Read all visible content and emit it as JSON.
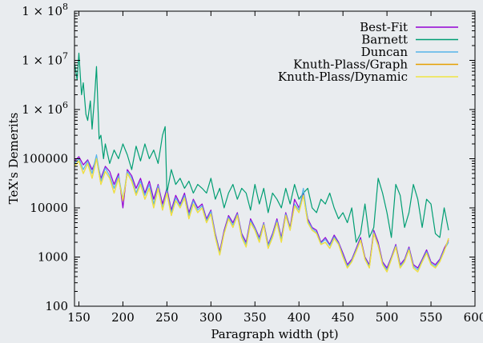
{
  "chart_data": {
    "type": "line",
    "title": "",
    "xlabel": "Paragraph width (pt)",
    "ylabel": "TeX's Demerits",
    "xlim": [
      145,
      600
    ],
    "ylim": [
      100,
      100000000
    ],
    "yscale": "log",
    "grid": false,
    "legend_position": "top-right",
    "x_ticks": [
      150,
      200,
      250,
      300,
      350,
      400,
      450,
      500,
      550,
      600
    ],
    "x_tick_labels": [
      "150",
      "200",
      "250",
      "300",
      "350",
      "400",
      "450",
      "500",
      "550",
      "600"
    ],
    "y_ticks": [
      100,
      1000,
      10000,
      100000,
      1000000,
      10000000,
      100000000
    ],
    "y_tick_labels": [
      "100",
      "1000",
      "10000",
      "100000",
      "1 × 10",
      "1 × 10",
      "1 × 10"
    ],
    "y_tick_exponents": [
      "",
      "",
      "",
      "",
      "6",
      "7",
      "8"
    ],
    "series": [
      {
        "name": "Best-Fit",
        "color": "#9400d3",
        "x": [
          145,
          150,
          155,
          160,
          165,
          170,
          175,
          180,
          185,
          190,
          195,
          200,
          205,
          210,
          215,
          220,
          225,
          230,
          235,
          240,
          245,
          250,
          255,
          260,
          265,
          270,
          275,
          280,
          285,
          290,
          295,
          300,
          305,
          310,
          315,
          320,
          325,
          330,
          335,
          340,
          345,
          350,
          355,
          360,
          365,
          370,
          375,
          380,
          385,
          390,
          395,
          400,
          405,
          410,
          415,
          420,
          425,
          430,
          435,
          440,
          445,
          450,
          455,
          460,
          465,
          470,
          475,
          480,
          485,
          490,
          495,
          500,
          505,
          510,
          515,
          520,
          525,
          530,
          535,
          540,
          545,
          550,
          555,
          560,
          565,
          570
        ],
        "values": [
          90000,
          110000,
          75000,
          95000,
          60000,
          100000,
          40000,
          70000,
          55000,
          30000,
          50000,
          10000,
          60000,
          45000,
          25000,
          40000,
          20000,
          35000,
          15000,
          30000,
          12000,
          25000,
          9000,
          18000,
          12000,
          20000,
          8000,
          15000,
          10000,
          12000,
          6000,
          9000,
          3000,
          1300,
          3500,
          7000,
          5000,
          8000,
          3000,
          2000,
          6000,
          4000,
          2500,
          5000,
          1800,
          3000,
          6000,
          2500,
          8000,
          4000,
          15000,
          10000,
          20000,
          6000,
          4000,
          3500,
          2000,
          2500,
          1800,
          2800,
          2000,
          1200,
          700,
          900,
          1500,
          2500,
          1000,
          700,
          3500,
          2000,
          800,
          600,
          1000,
          1800,
          700,
          900,
          1600,
          700,
          600,
          900,
          1400,
          800,
          700,
          900,
          1500,
          2200
        ]
      },
      {
        "name": "Barnett",
        "color": "#009e73",
        "x": [
          145,
          148,
          150,
          153,
          155,
          158,
          160,
          163,
          165,
          168,
          170,
          173,
          175,
          178,
          180,
          185,
          190,
          195,
          200,
          205,
          210,
          215,
          220,
          225,
          230,
          235,
          240,
          245,
          248,
          250,
          255,
          260,
          265,
          270,
          275,
          280,
          285,
          290,
          295,
          300,
          305,
          310,
          315,
          320,
          325,
          330,
          335,
          340,
          345,
          350,
          355,
          360,
          365,
          370,
          375,
          380,
          385,
          390,
          395,
          400,
          405,
          410,
          415,
          420,
          425,
          430,
          435,
          440,
          445,
          450,
          455,
          460,
          465,
          470,
          475,
          480,
          485,
          490,
          495,
          500,
          505,
          510,
          515,
          520,
          525,
          530,
          535,
          540,
          545,
          550,
          555,
          560,
          565,
          570
        ],
        "values": [
          9000000,
          4000000,
          14000000,
          2000000,
          3500000,
          800000,
          600000,
          1500000,
          400000,
          2000000,
          7500000,
          250000,
          300000,
          100000,
          200000,
          80000,
          150000,
          100000,
          200000,
          120000,
          60000,
          180000,
          90000,
          200000,
          100000,
          150000,
          80000,
          300000,
          450000,
          20000,
          60000,
          30000,
          40000,
          25000,
          35000,
          20000,
          30000,
          25000,
          20000,
          40000,
          15000,
          25000,
          10000,
          20000,
          30000,
          15000,
          25000,
          20000,
          9000,
          30000,
          12000,
          25000,
          8000,
          20000,
          15000,
          10000,
          25000,
          12000,
          30000,
          15000,
          20000,
          25000,
          10000,
          8000,
          15000,
          12000,
          20000,
          10000,
          6000,
          8000,
          5000,
          10000,
          2000,
          3000,
          12000,
          2500,
          4000,
          40000,
          20000,
          8000,
          2500,
          30000,
          18000,
          4000,
          8000,
          30000,
          15000,
          4000,
          15000,
          12000,
          3000,
          2500,
          10000,
          3500
        ]
      },
      {
        "name": "Duncan",
        "color": "#56b4e9",
        "x": [
          145,
          150,
          155,
          160,
          165,
          170,
          175,
          180,
          185,
          190,
          195,
          200,
          205,
          210,
          215,
          220,
          225,
          230,
          235,
          240,
          245,
          250,
          255,
          260,
          265,
          270,
          275,
          280,
          285,
          290,
          295,
          300,
          305,
          310,
          315,
          320,
          325,
          330,
          335,
          340,
          345,
          350,
          355,
          360,
          365,
          370,
          375,
          380,
          385,
          390,
          395,
          400,
          405,
          410,
          415,
          420,
          425,
          430,
          435,
          440,
          445,
          450,
          455,
          460,
          465,
          470,
          475,
          480,
          485,
          490,
          495,
          500,
          505,
          510,
          515,
          520,
          525,
          530,
          535,
          540,
          545,
          550,
          555,
          560,
          565,
          570
        ],
        "values": [
          80000,
          100000,
          60000,
          90000,
          50000,
          120000,
          35000,
          65000,
          45000,
          25000,
          45000,
          15000,
          55000,
          40000,
          20000,
          35000,
          18000,
          30000,
          12000,
          28000,
          10000,
          22000,
          8000,
          16000,
          11000,
          18000,
          7000,
          14000,
          9000,
          11000,
          5500,
          8500,
          2800,
          1200,
          3200,
          6500,
          4500,
          7500,
          2800,
          1800,
          5500,
          3800,
          2300,
          4800,
          1700,
          2800,
          5500,
          2300,
          7500,
          3800,
          12000,
          9000,
          25000,
          5500,
          3800,
          3200,
          1900,
          2300,
          1700,
          2600,
          1900,
          1100,
          650,
          850,
          1400,
          2300,
          950,
          650,
          3200,
          1800,
          750,
          550,
          950,
          1700,
          650,
          850,
          1500,
          650,
          550,
          850,
          1300,
          750,
          650,
          850,
          1400,
          2000
        ]
      },
      {
        "name": "Knuth-Plass/Graph",
        "color": "#e69f00",
        "x": [
          145,
          150,
          155,
          160,
          165,
          170,
          175,
          180,
          185,
          190,
          195,
          200,
          205,
          210,
          215,
          220,
          225,
          230,
          235,
          240,
          245,
          250,
          255,
          260,
          265,
          270,
          275,
          280,
          285,
          290,
          295,
          300,
          305,
          310,
          315,
          320,
          325,
          330,
          335,
          340,
          345,
          350,
          355,
          360,
          365,
          370,
          375,
          380,
          385,
          390,
          395,
          400,
          405,
          410,
          415,
          420,
          425,
          430,
          435,
          440,
          445,
          450,
          455,
          460,
          465,
          470,
          475,
          480,
          485,
          490,
          495,
          500,
          505,
          510,
          515,
          520,
          525,
          530,
          535,
          540,
          545,
          550,
          555,
          560,
          565,
          570
        ],
        "values": [
          70000,
          90000,
          50000,
          80000,
          40000,
          100000,
          30000,
          55000,
          40000,
          20000,
          40000,
          14000,
          50000,
          35000,
          18000,
          30000,
          15000,
          25000,
          10000,
          25000,
          9000,
          20000,
          7000,
          14000,
          10000,
          16000,
          6000,
          12000,
          8000,
          10000,
          5000,
          7500,
          2500,
          1100,
          3000,
          6000,
          4000,
          7000,
          2500,
          1600,
          5000,
          3500,
          2000,
          4500,
          1500,
          2500,
          5000,
          2000,
          7000,
          3500,
          11000,
          8000,
          18000,
          5000,
          3500,
          3000,
          1800,
          2000,
          1500,
          2400,
          1800,
          1000,
          600,
          800,
          1300,
          2200,
          900,
          600,
          3000,
          1700,
          700,
          500,
          900,
          1600,
          600,
          800,
          1400,
          600,
          500,
          800,
          1200,
          700,
          600,
          800,
          1300,
          2400
        ]
      },
      {
        "name": "Knuth-Plass/Dynamic",
        "color": "#f0e442",
        "x": [
          145,
          150,
          155,
          160,
          165,
          170,
          175,
          180,
          185,
          190,
          195,
          200,
          205,
          210,
          215,
          220,
          225,
          230,
          235,
          240,
          245,
          250,
          255,
          260,
          265,
          270,
          275,
          280,
          285,
          290,
          295,
          300,
          305,
          310,
          315,
          320,
          325,
          330,
          335,
          340,
          345,
          350,
          355,
          360,
          365,
          370,
          375,
          380,
          385,
          390,
          395,
          400,
          405,
          410,
          415,
          420,
          425,
          430,
          435,
          440,
          445,
          450,
          455,
          460,
          465,
          470,
          475,
          480,
          485,
          490,
          495,
          500,
          505,
          510,
          515,
          520,
          525,
          530,
          535,
          540,
          545,
          550,
          555,
          560,
          565,
          570
        ],
        "values": [
          70000,
          90000,
          50000,
          80000,
          40000,
          100000,
          30000,
          55000,
          40000,
          20000,
          40000,
          14000,
          50000,
          35000,
          18000,
          30000,
          15000,
          25000,
          10000,
          25000,
          9000,
          20000,
          7000,
          14000,
          10000,
          16000,
          6000,
          12000,
          8000,
          10000,
          5000,
          7500,
          2500,
          1100,
          3000,
          6000,
          4000,
          7000,
          2500,
          1600,
          5000,
          3500,
          2000,
          4500,
          1500,
          2500,
          5000,
          2000,
          7000,
          3500,
          11000,
          8000,
          18000,
          5000,
          3500,
          3000,
          1800,
          2000,
          1500,
          2400,
          1800,
          1000,
          600,
          800,
          1300,
          2200,
          900,
          600,
          3000,
          1700,
          700,
          500,
          900,
          1600,
          600,
          800,
          1400,
          600,
          500,
          800,
          1200,
          700,
          600,
          800,
          1300,
          2400
        ]
      }
    ]
  }
}
